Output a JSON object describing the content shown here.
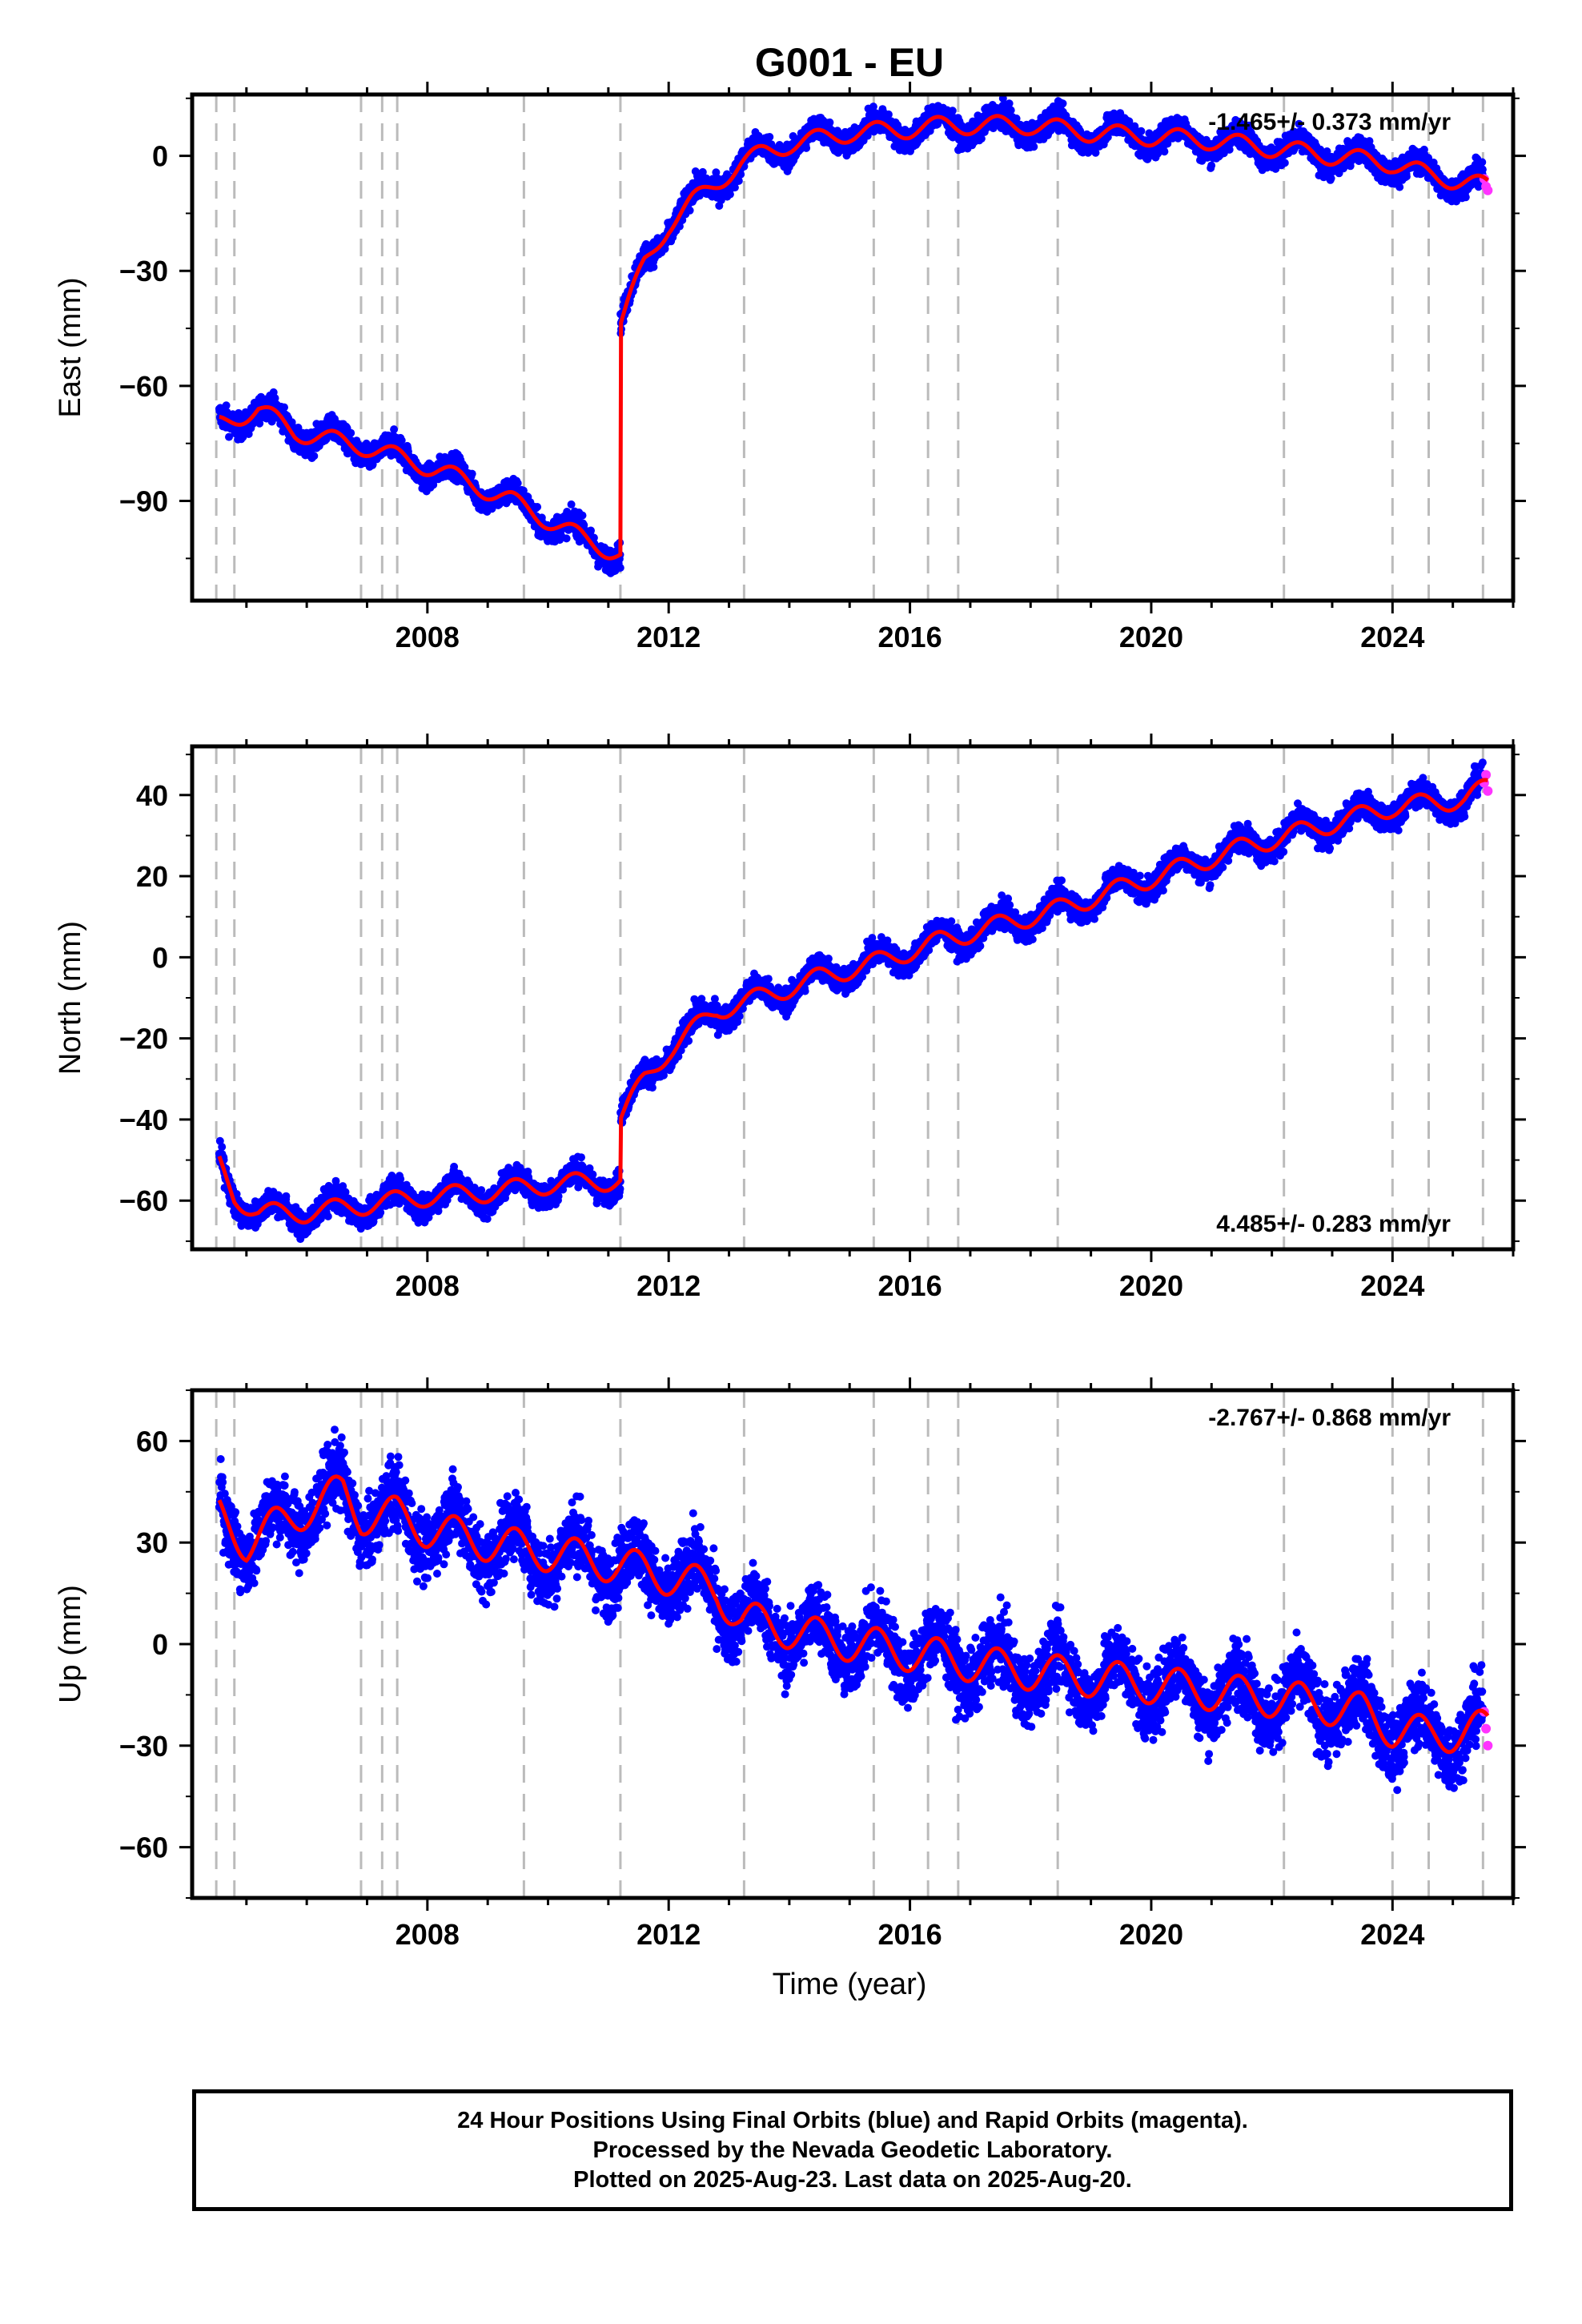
{
  "title": "G001 - EU",
  "xlabel": "Time (year)",
  "caption": {
    "line1": "24 Hour Positions Using Final Orbits (blue) and Rapid Orbits (magenta).",
    "line2": "Processed by the Nevada Geodetic Laboratory.",
    "line3": "Plotted on 2025-Aug-23. Last data on 2025-Aug-20."
  },
  "colors": {
    "final_orbits": "#0000ff",
    "rapid_orbits": "#ff33ff",
    "model": "#ff0000",
    "event_lines": "#bbbbbb"
  },
  "chart_data": [
    {
      "type": "scatter",
      "name": "East",
      "ylabel": "East (mm)",
      "rate_label": "-1.465+/- 0.373 mm/yr",
      "rate_position": "top-right",
      "xlim": [
        2004.1,
        2026.0
      ],
      "ylim": [
        -116,
        16
      ],
      "yticks": [
        -90,
        -60,
        -30,
        0
      ],
      "xticks": [
        2008,
        2012,
        2016,
        2020,
        2024
      ],
      "event_lines": [
        2004.5,
        2004.8,
        2006.9,
        2007.25,
        2007.5,
        2009.6,
        2011.2,
        2013.25,
        2015.4,
        2016.3,
        2016.8,
        2018.45,
        2022.2,
        2024.0,
        2024.6,
        2025.5
      ],
      "noise_mm": 2.2,
      "model": {
        "x": [
          2004.55,
          2005.2,
          2005.8,
          2006.4,
          2007.0,
          2007.6,
          2008.2,
          2008.8,
          2009.4,
          2010.0,
          2010.6,
          2011.2,
          2011.201,
          2011.6,
          2012.0,
          2012.4,
          2012.8,
          2013.2,
          2013.6,
          2014.0,
          2015.0,
          2016.0,
          2016.6,
          2017.2,
          2018.0,
          2019.0,
          2020.0,
          2021.0,
          2022.0,
          2023.0,
          2024.0,
          2024.6,
          2025.58
        ],
        "y": [
          -70,
          -66,
          -72,
          -74,
          -76,
          -79,
          -82,
          -86,
          -90,
          -95,
          -100,
          -104,
          -44,
          -28,
          -18,
          -12,
          -7,
          -2,
          1,
          3,
          6,
          7,
          8,
          8,
          8,
          6,
          5,
          4,
          2,
          0,
          -2,
          -5,
          -8
        ]
      },
      "rapid": {
        "x": [
          2025.52,
          2025.55,
          2025.58
        ],
        "y": [
          -6,
          -8,
          -9
        ]
      }
    },
    {
      "type": "scatter",
      "name": "North",
      "ylabel": "North (mm)",
      "rate_label": "4.485+/- 0.283 mm/yr",
      "rate_position": "bottom-right",
      "xlim": [
        2004.1,
        2026.0
      ],
      "ylim": [
        -72,
        52
      ],
      "yticks": [
        -60,
        -40,
        -20,
        0,
        20,
        40
      ],
      "xticks": [
        2008,
        2012,
        2016,
        2020,
        2024
      ],
      "event_lines": [
        2004.5,
        2004.8,
        2006.9,
        2007.25,
        2007.5,
        2009.6,
        2011.2,
        2013.25,
        2015.4,
        2016.3,
        2016.8,
        2018.45,
        2022.2,
        2024.0,
        2024.6,
        2025.5
      ],
      "noise_mm": 2.2,
      "model": {
        "x": [
          2004.55,
          2004.8,
          2005.2,
          2006.0,
          2007.0,
          2008.0,
          2009.0,
          2010.0,
          2011.2,
          2011.201,
          2011.6,
          2012.0,
          2012.4,
          2012.8,
          2013.5,
          2014.5,
          2015.5,
          2016.5,
          2017.5,
          2018.5,
          2019.5,
          2020.5,
          2021.5,
          2022.5,
          2023.5,
          2024.0,
          2024.6,
          2025.2,
          2025.58
        ],
        "y": [
          -51,
          -59,
          -63,
          -63,
          -61,
          -59,
          -58,
          -56,
          -55,
          -40,
          -30,
          -23,
          -18,
          -13,
          -10,
          -5,
          -1,
          4,
          8,
          12,
          17,
          22,
          27,
          31,
          35,
          37,
          38,
          39,
          42
        ]
      },
      "rapid": {
        "x": [
          2025.52,
          2025.55,
          2025.58
        ],
        "y": [
          43,
          45,
          41
        ]
      }
    },
    {
      "type": "scatter",
      "name": "Up",
      "ylabel": "Up (mm)",
      "rate_label": "-2.767+/- 0.868 mm/yr",
      "rate_position": "top-right",
      "xlim": [
        2004.1,
        2026.0
      ],
      "ylim": [
        -75,
        75
      ],
      "yticks": [
        -60,
        -30,
        0,
        30,
        60
      ],
      "xticks": [
        2008,
        2012,
        2016,
        2020,
        2024
      ],
      "event_lines": [
        2004.5,
        2004.8,
        2006.9,
        2007.25,
        2007.5,
        2009.6,
        2011.2,
        2013.25,
        2015.4,
        2016.3,
        2016.8,
        2018.45,
        2022.2,
        2024.0,
        2024.6,
        2025.5
      ],
      "noise_mm": 7,
      "model": {
        "x": [
          2004.55,
          2005.0,
          2005.5,
          2006.0,
          2006.6,
          2006.9,
          2007.5,
          2008.0,
          2009.0,
          2010.0,
          2011.0,
          2012.0,
          2012.8,
          2013.2,
          2013.6,
          2014.5,
          2015.5,
          2016.5,
          2017.5,
          2018.5,
          2019.5,
          2020.5,
          2021.5,
          2022.5,
          2023.5,
          2024.0,
          2024.6,
          2025.58
        ],
        "y": [
          38,
          30,
          35,
          40,
          45,
          38,
          38,
          34,
          30,
          27,
          24,
          20,
          16,
          7,
          6,
          2,
          -1,
          -4,
          -7,
          -9,
          -11,
          -13,
          -15,
          -17,
          -20,
          -25,
          -27,
          -25
        ]
      },
      "rapid": {
        "x": [
          2025.52,
          2025.55,
          2025.58
        ],
        "y": [
          -20,
          -25,
          -30
        ]
      }
    }
  ]
}
